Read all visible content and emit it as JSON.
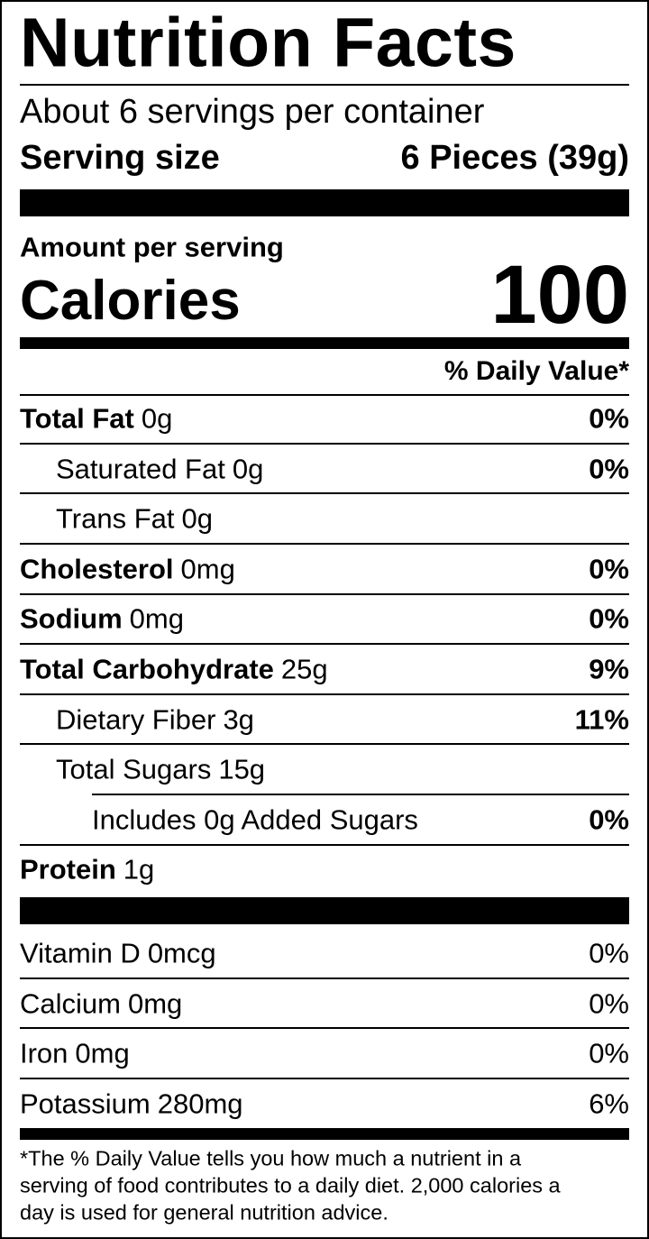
{
  "title": "Nutrition Facts",
  "servings_per_container": "About 6 servings per container",
  "serving_size": {
    "label": "Serving size",
    "value": "6 Pieces (39g)"
  },
  "amount_per_serving": "Amount per serving",
  "calories": {
    "label": "Calories",
    "value": "100"
  },
  "daily_value_header": "% Daily Value*",
  "nutrients": [
    {
      "name": "Total Fat",
      "amount": "0g",
      "dv": "0%"
    },
    {
      "name": "Saturated Fat",
      "amount": "0g",
      "dv": "0%"
    },
    {
      "name": "Trans Fat",
      "amount": "0g"
    },
    {
      "name": "Cholesterol",
      "amount": "0mg",
      "dv": "0%"
    },
    {
      "name": "Sodium",
      "amount": "0mg",
      "dv": "0%"
    },
    {
      "name": "Total Carbohydrate",
      "amount": "25g",
      "dv": "9%"
    },
    {
      "name": "Dietary Fiber",
      "amount": "3g",
      "dv": "11%"
    },
    {
      "name": "Total Sugars",
      "amount": "15g"
    },
    {
      "name": "Includes 0g Added Sugars",
      "dv": "0%"
    },
    {
      "name": "Protein",
      "amount": "1g"
    }
  ],
  "vitamins": [
    {
      "name": "Vitamin D",
      "amount": "0mcg",
      "dv": "0%"
    },
    {
      "name": "Calcium",
      "amount": "0mg",
      "dv": "0%"
    },
    {
      "name": "Iron",
      "amount": "0mg",
      "dv": "0%"
    },
    {
      "name": "Potassium",
      "amount": "280mg",
      "dv": "6%"
    }
  ],
  "footnote": [
    "*The % Daily Value tells you how much a nutrient in a",
    "serving of food contributes to a daily diet. 2,000 calories a",
    "day is used for general nutrition advice."
  ]
}
